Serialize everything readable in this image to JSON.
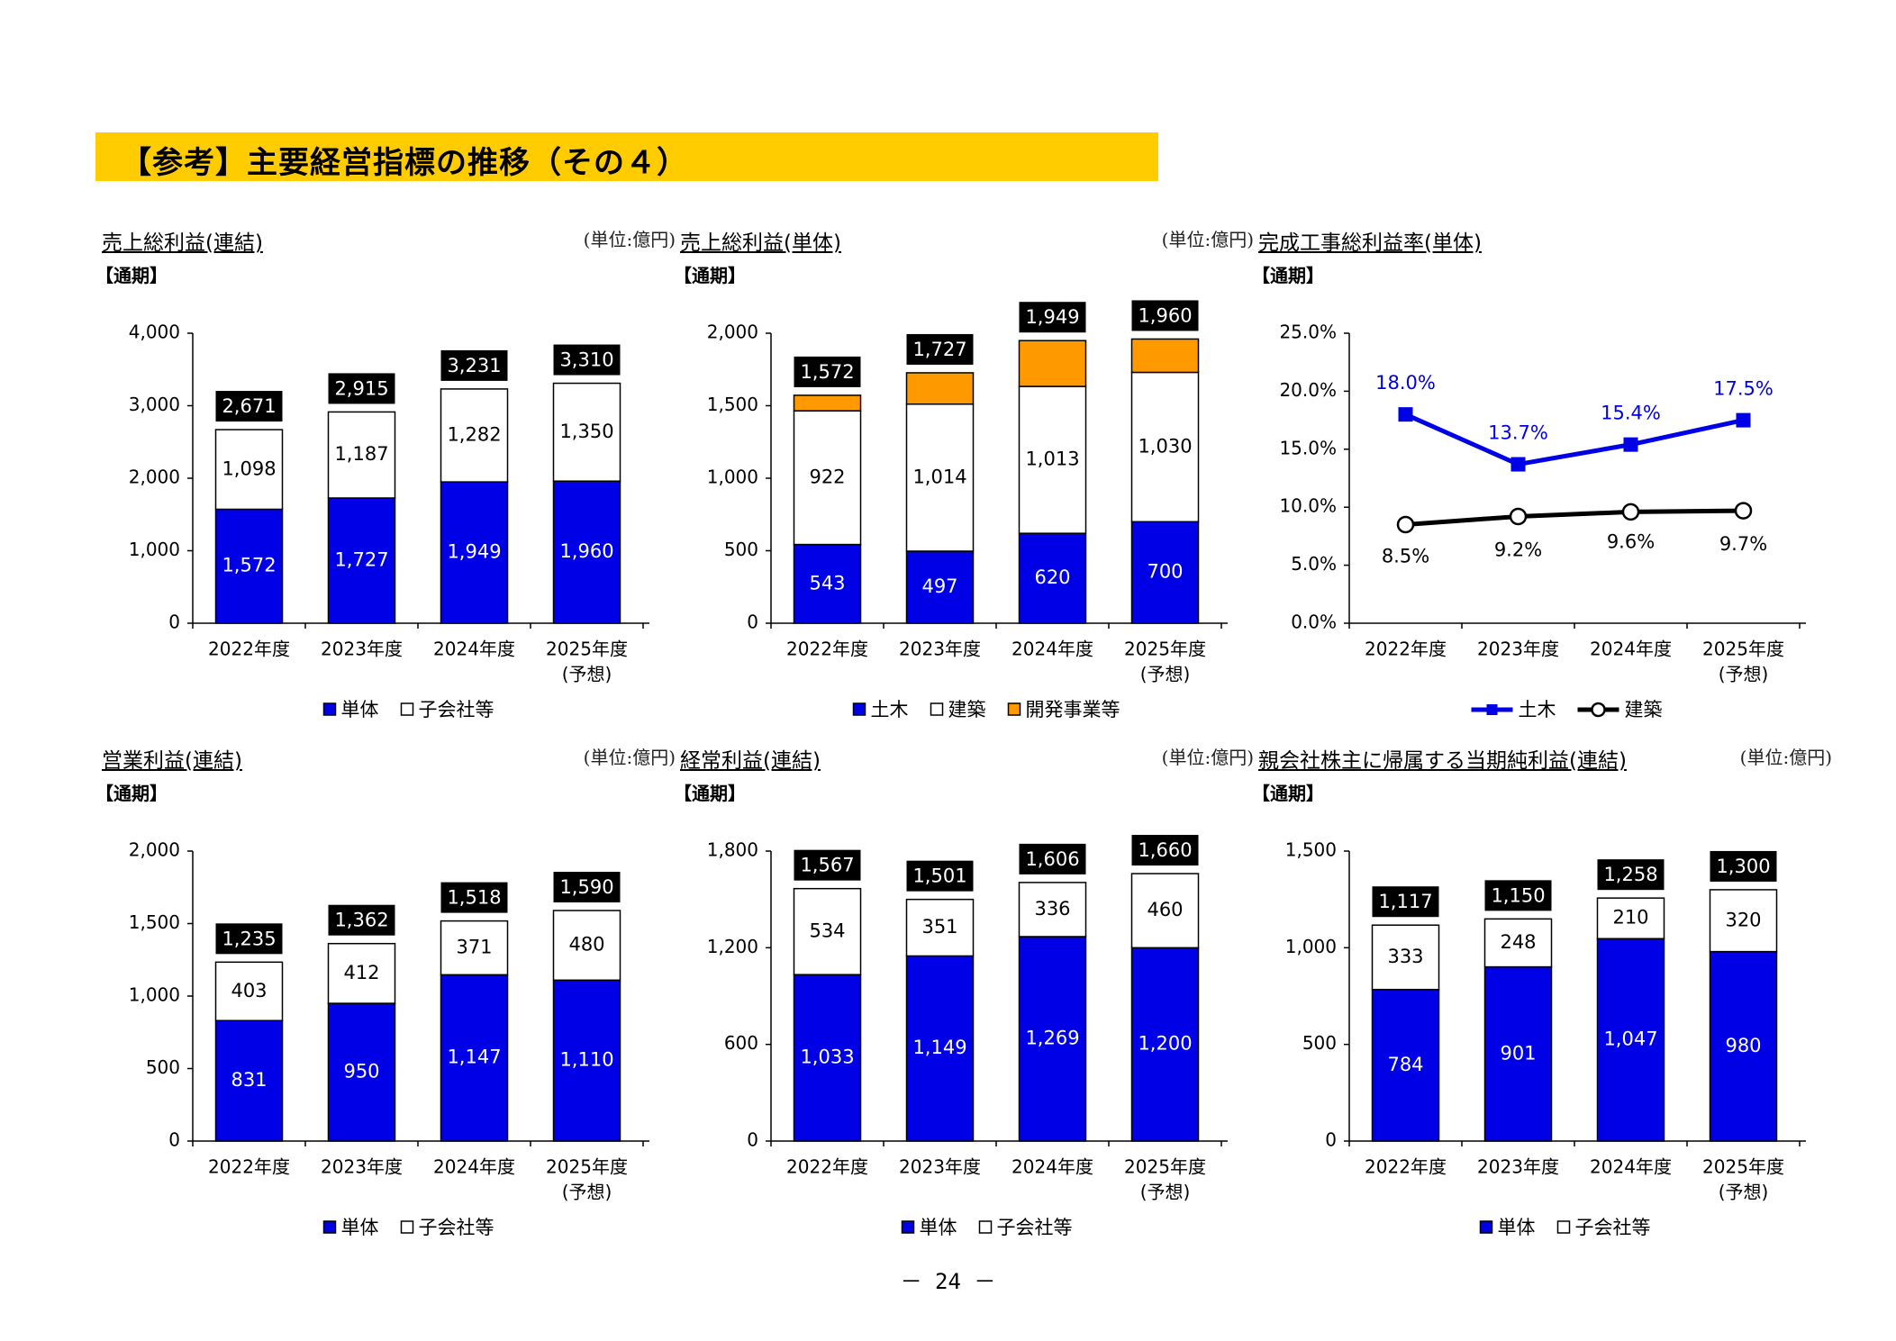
{
  "header": {
    "title": "【参考】主要経営指標の推移（その４）"
  },
  "page_number": "－ 24 －",
  "charts": {
    "consolidated_gross_profit": {
      "title": "売上総利益(連結)",
      "unit": "(単位:億円)",
      "period": "【通期】"
    },
    "nonconsolidated_gross_profit": {
      "title": "売上総利益(単体)",
      "unit": "(単位:億円)",
      "period": "【通期】"
    },
    "gross_margin_rate": {
      "title": "完成工事総利益率(単体)",
      "unit": "",
      "period": "【通期】"
    },
    "operating_income": {
      "title": "営業利益(連結)",
      "unit": "(単位:億円)",
      "period": "【通期】"
    },
    "ordinary_income": {
      "title": "経常利益(連結)",
      "unit": "(単位:億円)",
      "period": "【通期】"
    },
    "net_income": {
      "title": "親会社株主に帰属する当期純利益(連結)",
      "unit": "(単位:億円)",
      "period": "【通期】"
    }
  },
  "chart_data": [
    {
      "id": "consolidated_gross_profit",
      "type": "bar",
      "stacked": true,
      "categories": [
        "2022年度",
        "2023年度",
        "2024年度",
        "2025年度\n(予想)"
      ],
      "series": [
        {
          "name": "単体",
          "values": [
            1572,
            1727,
            1949,
            1960
          ],
          "color": "#0000E6"
        },
        {
          "name": "子会社等",
          "values": [
            1098,
            1187,
            1282,
            1350
          ],
          "color": "#FFFFFF"
        }
      ],
      "totals": [
        2671,
        2915,
        3231,
        3310
      ],
      "ylim": [
        0,
        4000
      ],
      "yticks": [
        0,
        1000,
        2000,
        3000,
        4000
      ],
      "legend": "bottom"
    },
    {
      "id": "nonconsolidated_gross_profit",
      "type": "bar",
      "stacked": true,
      "categories": [
        "2022年度",
        "2023年度",
        "2024年度",
        "2025年度\n(予想)"
      ],
      "series": [
        {
          "name": "土木",
          "values": [
            543,
            497,
            620,
            700
          ],
          "color": "#0000E6"
        },
        {
          "name": "建築",
          "values": [
            922,
            1014,
            1013,
            1030
          ],
          "color": "#FFFFFF"
        },
        {
          "name": "開発事業等",
          "values": [
            107,
            216,
            316,
            230
          ],
          "color": "#FF9900",
          "labels_shown": false
        }
      ],
      "totals": [
        1572,
        1727,
        1949,
        1960
      ],
      "ylim": [
        0,
        2000
      ],
      "yticks": [
        0,
        500,
        1000,
        1500,
        2000
      ],
      "legend": "bottom"
    },
    {
      "id": "gross_margin_rate",
      "type": "line",
      "categories": [
        "2022年度",
        "2023年度",
        "2024年度",
        "2025年度\n(予想)"
      ],
      "series": [
        {
          "name": "土木",
          "values": [
            18.0,
            13.7,
            15.4,
            17.5
          ],
          "labels": [
            "18.0%",
            "13.7%",
            "15.4%",
            "17.5%"
          ],
          "color": "#0000E6",
          "marker": "square"
        },
        {
          "name": "建築",
          "values": [
            8.5,
            9.2,
            9.6,
            9.7
          ],
          "labels": [
            "8.5%",
            "9.2%",
            "9.6%",
            "9.7%"
          ],
          "color": "#000000",
          "marker": "circle"
        }
      ],
      "ylim": [
        0,
        25
      ],
      "yticks": [
        "0.0%",
        "5.0%",
        "10.0%",
        "15.0%",
        "20.0%",
        "25.0%"
      ],
      "legend": "bottom"
    },
    {
      "id": "operating_income",
      "type": "bar",
      "stacked": true,
      "categories": [
        "2022年度",
        "2023年度",
        "2024年度",
        "2025年度\n(予想)"
      ],
      "series": [
        {
          "name": "単体",
          "values": [
            831,
            950,
            1147,
            1110
          ],
          "color": "#0000E6"
        },
        {
          "name": "子会社等",
          "values": [
            403,
            412,
            371,
            480
          ],
          "color": "#FFFFFF"
        }
      ],
      "totals": [
        1235,
        1362,
        1518,
        1590
      ],
      "ylim": [
        0,
        2000
      ],
      "yticks": [
        0,
        500,
        1000,
        1500,
        2000
      ],
      "legend": "bottom"
    },
    {
      "id": "ordinary_income",
      "type": "bar",
      "stacked": true,
      "categories": [
        "2022年度",
        "2023年度",
        "2024年度",
        "2025年度\n(予想)"
      ],
      "series": [
        {
          "name": "単体",
          "values": [
            1033,
            1149,
            1269,
            1200
          ],
          "color": "#0000E6"
        },
        {
          "name": "子会社等",
          "values": [
            534,
            351,
            336,
            460
          ],
          "color": "#FFFFFF"
        }
      ],
      "totals": [
        1567,
        1501,
        1606,
        1660
      ],
      "ylim": [
        0,
        1800
      ],
      "yticks": [
        0,
        600,
        1200,
        1800
      ],
      "legend": "bottom"
    },
    {
      "id": "net_income",
      "type": "bar",
      "stacked": true,
      "categories": [
        "2022年度",
        "2023年度",
        "2024年度",
        "2025年度\n(予想)"
      ],
      "series": [
        {
          "name": "単体",
          "values": [
            784,
            901,
            1047,
            980
          ],
          "color": "#0000E6"
        },
        {
          "name": "子会社等",
          "values": [
            333,
            248,
            210,
            320
          ],
          "color": "#FFFFFF"
        }
      ],
      "totals": [
        1117,
        1150,
        1258,
        1300
      ],
      "ylim": [
        0,
        1500
      ],
      "yticks": [
        0,
        500,
        1000,
        1500
      ],
      "legend": "bottom"
    }
  ]
}
